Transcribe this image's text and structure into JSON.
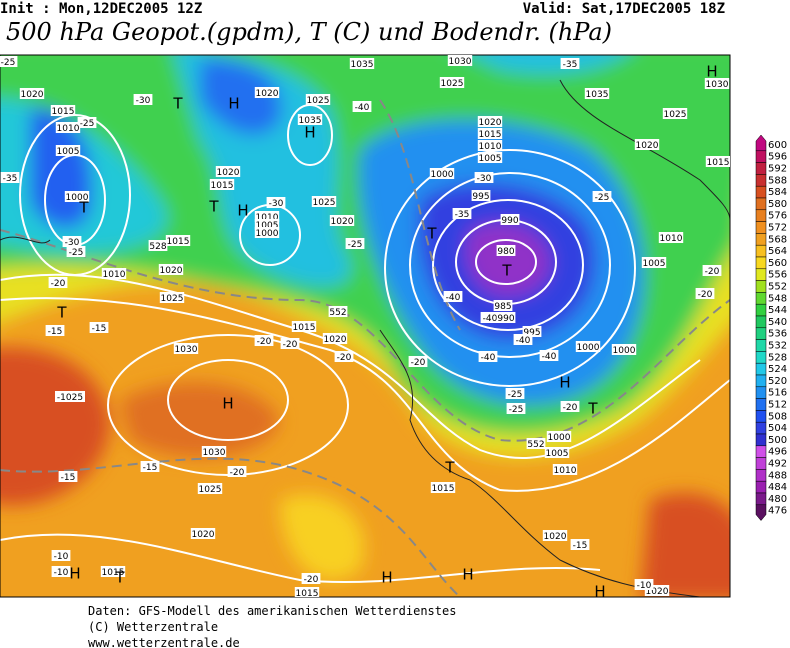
{
  "header": {
    "init": "Init : Mon,12DEC2005 12Z",
    "valid": "Valid: Sat,17DEC2005 18Z",
    "title": "500 hPa Geopot.(gpdm), T (C) und Bodendr. (hPa)"
  },
  "map_labels": [
    "-25",
    "1035",
    "1030",
    "-35",
    "H",
    "1030",
    "1020",
    "-30",
    "T",
    "H",
    "1020",
    "1025",
    "-40",
    "1025",
    "1035",
    "1015",
    "-25",
    "1010",
    "1035",
    "H",
    "1020",
    "1015",
    "1010",
    "1005",
    "1025",
    "1020",
    "1015",
    "-35",
    "1005",
    "1000",
    "T",
    "1020",
    "1015",
    "T",
    "H",
    "-30",
    "1025",
    "1010",
    "1005",
    "1000",
    "-30",
    "-25",
    "1015",
    "1020",
    "-25",
    "1000",
    "-30",
    "995",
    "-35",
    "990",
    "980",
    "T",
    "T",
    "-25",
    "1010",
    "1005",
    "-20",
    "-20",
    "1010",
    "1020",
    "-20",
    "1025",
    "T",
    "-15",
    "-15",
    "1015",
    "1020",
    "-20",
    "-20",
    "-20",
    "-40",
    "985",
    "-40",
    "990",
    "995",
    "-40",
    "1000",
    "1000",
    "-40",
    "-40",
    "-20",
    "1030",
    "-1025",
    "H",
    "H",
    "-25",
    "-25",
    "-20",
    "T",
    "1000",
    "1005",
    "1010",
    "1030",
    "-20",
    "-15",
    "-15",
    "T",
    "1015",
    "1025",
    "1020",
    "1020",
    "-15",
    "-10",
    "-10",
    "1015",
    "T",
    "H",
    "H",
    "H",
    "-20",
    "1015",
    "H",
    "1020",
    "-10",
    "552",
    "552",
    "528"
  ],
  "colorbar": {
    "levels": [
      600,
      596,
      592,
      588,
      584,
      580,
      576,
      572,
      568,
      564,
      560,
      556,
      552,
      548,
      544,
      540,
      536,
      532,
      528,
      524,
      520,
      516,
      512,
      508,
      504,
      500,
      496,
      492,
      488,
      484,
      480,
      476
    ],
    "colors": [
      "#c00880",
      "#c01060",
      "#c02040",
      "#c83030",
      "#d85020",
      "#e07020",
      "#e88020",
      "#f09020",
      "#f0a020",
      "#f8c020",
      "#f8d820",
      "#e0e820",
      "#a0e020",
      "#60d830",
      "#30d040",
      "#20c860",
      "#20d080",
      "#20d8a8",
      "#20d8c8",
      "#20c8e8",
      "#20b0f0",
      "#2090f0",
      "#2070f0",
      "#2050f0",
      "#3040e0",
      "#3030d0",
      "#d050e8",
      "#c040d8",
      "#b030c8",
      "#9a20b0",
      "#7a1a8a",
      "#5a1060"
    ]
  },
  "footer": [
    "Daten: GFS-Modell des amerikanischen Wetterdienstes",
    "(C) Wetterzentrale",
    "www.wetterzentrale.de"
  ]
}
